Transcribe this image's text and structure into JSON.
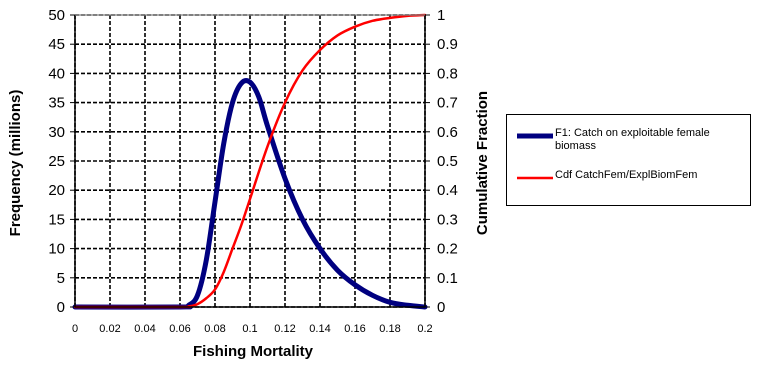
{
  "chart_data": {
    "type": "line",
    "xlabel": "Fishing Mortality",
    "ylabel": "Frequency (millions)",
    "y2label": "Cumulative Fraction",
    "xlim": [
      0,
      0.2
    ],
    "ylim": [
      0,
      50
    ],
    "y2lim": [
      0,
      1
    ],
    "x_ticks": [
      "0",
      "0.02",
      "0.04",
      "0.06",
      "0.08",
      "0.1",
      "0.12",
      "0.14",
      "0.16",
      "0.18",
      "0.2"
    ],
    "y_ticks": [
      "0",
      "5",
      "10",
      "15",
      "20",
      "25",
      "30",
      "35",
      "40",
      "45",
      "50"
    ],
    "y2_ticks": [
      "0",
      "0.1",
      "0.2",
      "0.3",
      "0.4",
      "0.5",
      "0.6",
      "0.7",
      "0.8",
      "0.9",
      "1"
    ],
    "grid": true,
    "legend_position": "right",
    "series": [
      {
        "name": "F1: Catch on exploitable female biomass",
        "axis": "left",
        "color": "#000080",
        "x": [
          0,
          0.06,
          0.065,
          0.07,
          0.075,
          0.08,
          0.085,
          0.09,
          0.095,
          0.1,
          0.105,
          0.11,
          0.12,
          0.13,
          0.14,
          0.15,
          0.16,
          0.17,
          0.18,
          0.19,
          0.2
        ],
        "y": [
          0,
          0,
          0.3,
          2,
          8,
          18,
          28,
          35,
          38.3,
          38.5,
          36,
          31,
          22,
          15,
          10,
          6.3,
          3.8,
          2,
          0.8,
          0.3,
          0
        ]
      },
      {
        "name": "Cdf CatchFem/ExplBiomFem",
        "axis": "right",
        "color": "#ff0000",
        "x": [
          0,
          0.06,
          0.065,
          0.07,
          0.075,
          0.08,
          0.085,
          0.09,
          0.095,
          0.1,
          0.11,
          0.12,
          0.13,
          0.14,
          0.15,
          0.16,
          0.17,
          0.18,
          0.19,
          0.2
        ],
        "y": [
          0,
          0,
          0.002,
          0.01,
          0.03,
          0.06,
          0.12,
          0.2,
          0.28,
          0.37,
          0.55,
          0.7,
          0.81,
          0.88,
          0.93,
          0.96,
          0.98,
          0.99,
          0.997,
          1
        ]
      }
    ]
  }
}
